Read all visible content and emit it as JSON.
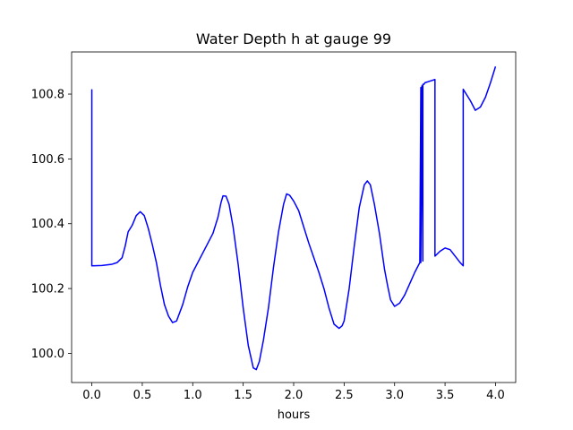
{
  "chart_data": {
    "type": "line",
    "title": "Water Depth h at gauge 99",
    "xlabel": "hours",
    "ylabel": "",
    "xlim": [
      -0.2,
      4.2
    ],
    "ylim": [
      99.91,
      100.93
    ],
    "xticks": [
      0.0,
      0.5,
      1.0,
      1.5,
      2.0,
      2.5,
      3.0,
      3.5,
      4.0
    ],
    "xtick_labels": [
      "0.0",
      "0.5",
      "1.0",
      "1.5",
      "2.0",
      "2.5",
      "3.0",
      "3.5",
      "4.0"
    ],
    "yticks": [
      100.0,
      100.2,
      100.4,
      100.6,
      100.8
    ],
    "ytick_labels": [
      "100.0",
      "100.2",
      "100.4",
      "100.6",
      "100.8"
    ],
    "grid": false,
    "series": [
      {
        "color": "#0000ff",
        "x": [
          0.0,
          0.0,
          0.0,
          0.1,
          0.2,
          0.25,
          0.3,
          0.33,
          0.36,
          0.4,
          0.44,
          0.48,
          0.52,
          0.56,
          0.6,
          0.64,
          0.68,
          0.72,
          0.76,
          0.8,
          0.84,
          0.9,
          0.95,
          1.0,
          1.1,
          1.2,
          1.25,
          1.28,
          1.3,
          1.33,
          1.36,
          1.4,
          1.45,
          1.5,
          1.55,
          1.6,
          1.63,
          1.66,
          1.7,
          1.75,
          1.8,
          1.85,
          1.9,
          1.93,
          1.96,
          2.0,
          2.05,
          2.1,
          2.15,
          2.2,
          2.25,
          2.3,
          2.35,
          2.4,
          2.45,
          2.48,
          2.5,
          2.55,
          2.6,
          2.65,
          2.7,
          2.73,
          2.76,
          2.8,
          2.85,
          2.9,
          2.93,
          2.96,
          3.0,
          3.05,
          3.1,
          3.15,
          3.2,
          3.25,
          3.26,
          3.26,
          3.27,
          3.28,
          3.28,
          3.29,
          3.3,
          3.35,
          3.4,
          3.4,
          3.45,
          3.5,
          3.55,
          3.6,
          3.65,
          3.68,
          3.68,
          3.7,
          3.75,
          3.8,
          3.85,
          3.9,
          3.95,
          4.0
        ],
        "y": [
          100.815,
          100.27,
          100.27,
          100.271,
          100.275,
          100.28,
          100.295,
          100.33,
          100.375,
          100.395,
          100.425,
          100.437,
          100.425,
          100.385,
          100.335,
          100.28,
          100.21,
          100.15,
          100.115,
          100.095,
          100.1,
          100.15,
          100.205,
          100.25,
          100.31,
          100.37,
          100.42,
          100.465,
          100.486,
          100.485,
          100.46,
          100.39,
          100.275,
          100.14,
          100.025,
          99.955,
          99.95,
          99.975,
          100.04,
          100.14,
          100.265,
          100.375,
          100.46,
          100.492,
          100.488,
          100.47,
          100.44,
          100.39,
          100.34,
          100.295,
          100.25,
          100.2,
          100.14,
          100.09,
          100.077,
          100.085,
          100.1,
          100.2,
          100.33,
          100.45,
          100.52,
          100.532,
          100.52,
          100.46,
          100.37,
          100.26,
          100.21,
          100.165,
          100.145,
          100.155,
          100.18,
          100.215,
          100.25,
          100.28,
          100.82,
          100.28,
          100.825,
          100.285,
          100.83,
          100.83,
          100.835,
          100.84,
          100.845,
          100.3,
          100.315,
          100.325,
          100.32,
          100.3,
          100.28,
          100.27,
          100.815,
          100.805,
          100.78,
          100.75,
          100.76,
          100.79,
          100.835,
          100.885
        ]
      }
    ]
  }
}
